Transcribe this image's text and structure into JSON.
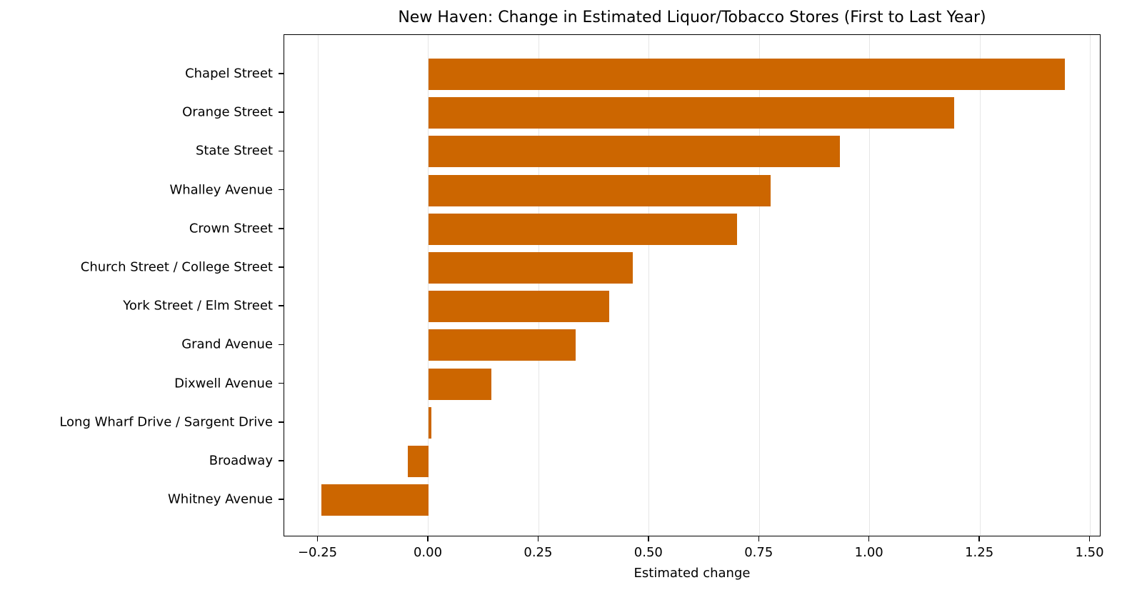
{
  "chart_data": {
    "type": "bar",
    "orientation": "horizontal",
    "title": "New Haven: Change in Estimated Liquor/Tobacco Stores (First to Last Year)",
    "xlabel": "Estimated change",
    "ylabel": "",
    "xlim": [
      -0.327,
      1.525
    ],
    "xticks": [
      -0.25,
      0.0,
      0.25,
      0.5,
      0.75,
      1.0,
      1.25,
      1.5
    ],
    "xtick_labels": [
      "−0.25",
      "0.00",
      "0.25",
      "0.50",
      "0.75",
      "1.00",
      "1.25",
      "1.50"
    ],
    "grid": {
      "x": true,
      "y": false,
      "color": "#e6e6e6"
    },
    "bar_color": "#cc6600",
    "legend": null,
    "categories": [
      "Chapel Street",
      "Orange Street",
      "State Street",
      "Whalley Avenue",
      "Crown Street",
      "Church Street / College Street",
      "York Street / Elm Street",
      "Grand Avenue",
      "Dixwell Avenue",
      "Long Wharf Drive / Sargent Drive",
      "Broadway",
      "Whitney Avenue"
    ],
    "values": [
      1.442,
      1.191,
      0.932,
      0.775,
      0.699,
      0.463,
      0.409,
      0.333,
      0.142,
      0.006,
      -0.047,
      -0.243
    ]
  }
}
